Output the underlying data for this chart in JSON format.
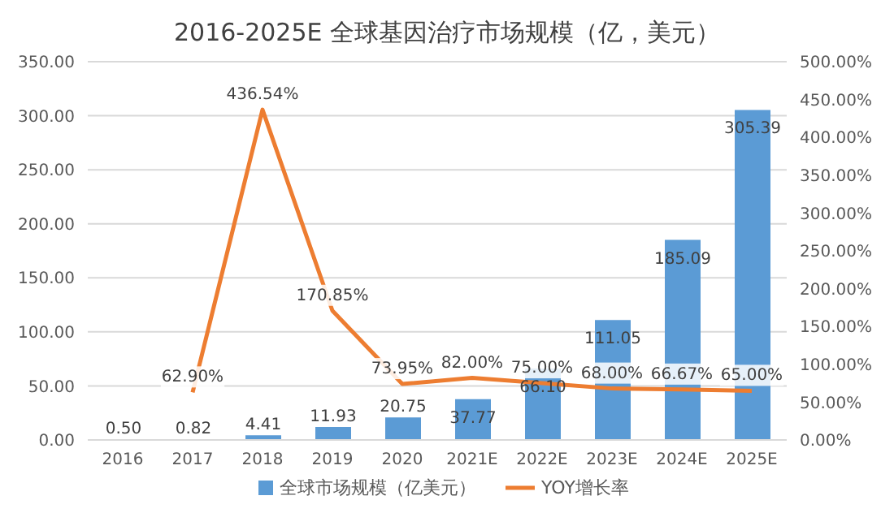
{
  "chart_data": {
    "type": "bar",
    "title": "2016-2025E 全球基因治疗市场规模（亿，美元）",
    "categories": [
      "2016",
      "2017",
      "2018",
      "2019",
      "2020",
      "2021E",
      "2022E",
      "2023E",
      "2024E",
      "2025E"
    ],
    "series": [
      {
        "name": "全球市场规模（亿美元）",
        "color": "#5b9bd5",
        "values": [
          0.5,
          0.82,
          4.41,
          11.93,
          20.75,
          37.77,
          66.1,
          111.05,
          185.09,
          305.39
        ],
        "value_labels": [
          "0.50",
          "0.82",
          "4.41",
          "11.93",
          "20.75",
          "37.77",
          "66.10",
          "111.05",
          "185.09",
          "305.39"
        ]
      },
      {
        "name": "YOY增长率",
        "type": "line",
        "axis": "y2",
        "color": "#ed7d31",
        "values": [
          null,
          62.9,
          436.54,
          170.85,
          73.95,
          82,
          75,
          68,
          66.67,
          65
        ],
        "value_labels": [
          null,
          "62.90%",
          "436.54%",
          "170.85%",
          "73.95%",
          "82.00%",
          "75.00%",
          "68.00%",
          "66.67%",
          "65.00%"
        ]
      }
    ],
    "ylim": [
      0,
      350
    ],
    "yticks": [
      {
        "value": 0,
        "label": "0.00"
      },
      {
        "value": 50,
        "label": "50.00"
      },
      {
        "value": 100,
        "label": "100.00"
      },
      {
        "value": 150,
        "label": "150.00"
      },
      {
        "value": 200,
        "label": "200.00"
      },
      {
        "value": 250,
        "label": "250.00"
      },
      {
        "value": 300,
        "label": "300.00"
      },
      {
        "value": 350,
        "label": "350.00"
      }
    ],
    "y2lim": [
      0,
      500
    ],
    "y2ticks": [
      {
        "value": 0,
        "label": "0.00%"
      },
      {
        "value": 50,
        "label": "50.00%"
      },
      {
        "value": 100,
        "label": "100.00%"
      },
      {
        "value": 150,
        "label": "150.00%"
      },
      {
        "value": 200,
        "label": "200.00%"
      },
      {
        "value": 250,
        "label": "250.00%"
      },
      {
        "value": 300,
        "label": "300.00%"
      },
      {
        "value": 350,
        "label": "350.00%"
      },
      {
        "value": 400,
        "label": "400.00%"
      },
      {
        "value": 450,
        "label": "450.00%"
      },
      {
        "value": 500,
        "label": "500.00%"
      }
    ],
    "grid": "y",
    "legend": "bottom",
    "marker": "none",
    "line_style": "solid"
  }
}
